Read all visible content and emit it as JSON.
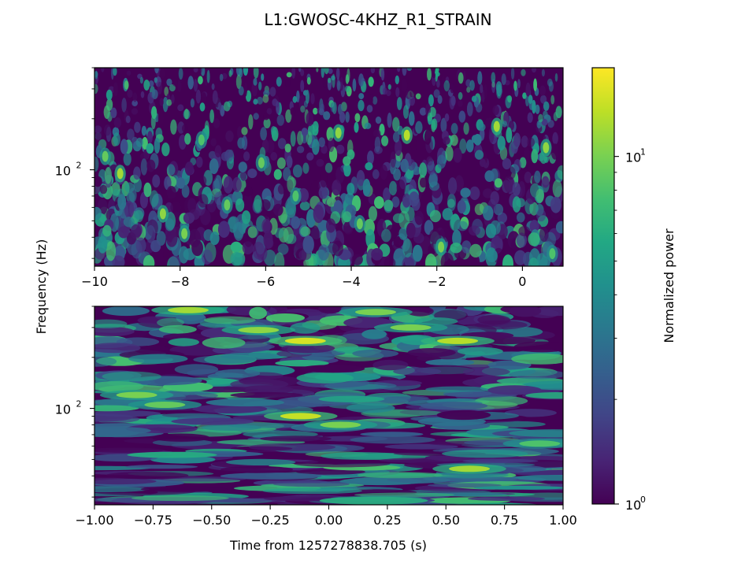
{
  "title": "L1:GWOSC-4KHZ_R1_STRAIN",
  "colors": {
    "viridis": [
      "#440154",
      "#482475",
      "#414487",
      "#355f8d",
      "#2a788e",
      "#21908d",
      "#22a884",
      "#42be71",
      "#7ad151",
      "#bddf26",
      "#fde725"
    ]
  },
  "chart_data": [
    {
      "type": "heatmap",
      "name": "q-transform-wide",
      "ylabel": "Frequency (Hz)",
      "xlabel": "",
      "xlim": [
        -10,
        0.95
      ],
      "ylim": [
        27,
        400
      ],
      "yscale": "log",
      "xticks": [
        -10,
        -8,
        -6,
        -4,
        -2,
        0
      ],
      "xtick_labels": [
        "−10",
        "−8",
        "−6",
        "−4",
        "−2",
        "0"
      ],
      "yticks": [
        100
      ],
      "ytick_base": "10",
      "ytick_exp": "2",
      "grid": false,
      "hotspots": [
        {
          "t": -9.75,
          "f": 120,
          "v": 9
        },
        {
          "t": -9.4,
          "f": 95,
          "v": 12
        },
        {
          "t": -8.4,
          "f": 55,
          "v": 11
        },
        {
          "t": -7.9,
          "f": 42,
          "v": 10
        },
        {
          "t": -7.5,
          "f": 150,
          "v": 8
        },
        {
          "t": -6.9,
          "f": 62,
          "v": 9
        },
        {
          "t": -6.1,
          "f": 110,
          "v": 9
        },
        {
          "t": -5.3,
          "f": 70,
          "v": 8
        },
        {
          "t": -4.3,
          "f": 165,
          "v": 11
        },
        {
          "t": -3.8,
          "f": 48,
          "v": 9
        },
        {
          "t": -2.7,
          "f": 160,
          "v": 13
        },
        {
          "t": -1.9,
          "f": 35,
          "v": 10
        },
        {
          "t": -0.6,
          "f": 180,
          "v": 12
        },
        {
          "t": 0.55,
          "f": 135,
          "v": 11
        },
        {
          "t": 0.7,
          "f": 32,
          "v": 8
        }
      ]
    },
    {
      "type": "heatmap",
      "name": "q-transform-zoom",
      "ylabel": "",
      "xlabel": "Time from 1257278838.705 (s)",
      "xlim": [
        -1.0,
        1.0
      ],
      "ylim": [
        27,
        400
      ],
      "yscale": "log",
      "xticks": [
        -1.0,
        -0.75,
        -0.5,
        -0.25,
        0.0,
        0.25,
        0.5,
        0.75,
        1.0
      ],
      "xtick_labels": [
        "−1.00",
        "−0.75",
        "−0.50",
        "−0.25",
        "0.00",
        "0.25",
        "0.50",
        "0.75",
        "1.00"
      ],
      "yticks": [
        100
      ],
      "ytick_base": "10",
      "ytick_exp": "2",
      "grid": false,
      "hotspots": [
        {
          "t": -0.12,
          "f": 90,
          "v": 14
        },
        {
          "t": 0.05,
          "f": 80,
          "v": 10
        },
        {
          "t": -0.1,
          "f": 250,
          "v": 15
        },
        {
          "t": 0.6,
          "f": 44,
          "v": 12
        },
        {
          "t": 0.55,
          "f": 250,
          "v": 13
        },
        {
          "t": -0.82,
          "f": 120,
          "v": 10
        },
        {
          "t": -0.7,
          "f": 105,
          "v": 9
        },
        {
          "t": -0.3,
          "f": 290,
          "v": 11
        },
        {
          "t": 0.35,
          "f": 300,
          "v": 10
        },
        {
          "t": 0.9,
          "f": 62,
          "v": 8
        },
        {
          "t": -0.6,
          "f": 380,
          "v": 12
        },
        {
          "t": 0.2,
          "f": 370,
          "v": 10
        }
      ]
    },
    {
      "type": "colorbar",
      "name": "colorbar",
      "label": "Normalized power",
      "scale": "log",
      "range": [
        1,
        18
      ],
      "ticks": [
        1,
        10
      ],
      "tick_base": "10",
      "tick_exps": [
        "0",
        "1"
      ]
    }
  ]
}
